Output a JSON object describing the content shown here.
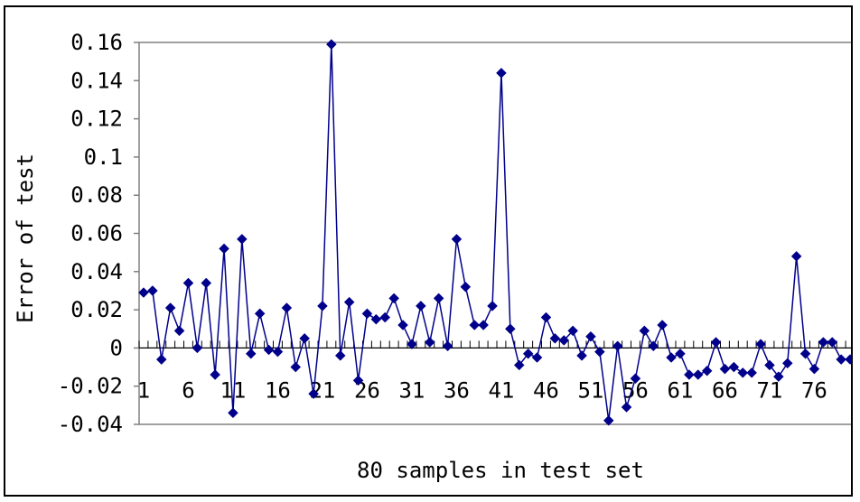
{
  "chart_data": {
    "type": "line",
    "title": "",
    "xlabel": "80 samples in test set",
    "ylabel": "Error of test",
    "ylim": [
      -0.04,
      0.16
    ],
    "xlim": [
      1,
      80
    ],
    "yticks": [
      "0.16",
      "0.14",
      "0.12",
      "0.1",
      "0.08",
      "0.06",
      "0.04",
      "0.02",
      "0",
      "-0.02",
      "-0.04"
    ],
    "ytick_values": [
      0.16,
      0.14,
      0.12,
      0.1,
      0.08,
      0.06,
      0.04,
      0.02,
      0,
      -0.02,
      -0.04
    ],
    "xticks": [
      "1",
      "6",
      "11",
      "16",
      "21",
      "26",
      "31",
      "36",
      "41",
      "46",
      "51",
      "56",
      "61",
      "66",
      "71",
      "76"
    ],
    "xtick_values": [
      1,
      6,
      11,
      16,
      21,
      26,
      31,
      36,
      41,
      46,
      51,
      56,
      61,
      66,
      71,
      76
    ],
    "grid": false,
    "legend": "none",
    "color": "#00008B",
    "marker": "diamond",
    "series": [
      {
        "x": [
          1,
          2,
          3,
          4,
          5,
          6,
          7,
          8,
          9,
          10,
          11,
          12,
          13,
          14,
          15,
          16,
          17,
          18,
          19,
          20,
          21,
          22,
          23,
          24,
          25,
          26,
          27,
          28,
          29,
          30,
          31,
          32,
          33,
          34,
          35,
          36,
          37,
          38,
          39,
          40,
          41,
          42,
          43,
          44,
          45,
          46,
          47,
          48,
          49,
          50,
          51,
          52,
          53,
          54,
          55,
          56,
          57,
          58,
          59,
          60,
          61,
          62,
          63,
          64,
          65,
          66,
          67,
          68,
          69,
          70,
          71,
          72,
          73,
          74,
          75,
          76,
          77,
          78,
          79,
          80
        ],
        "values": [
          0.029,
          0.03,
          -0.006,
          0.021,
          0.009,
          0.034,
          0.0,
          0.034,
          -0.014,
          0.052,
          -0.034,
          0.057,
          -0.003,
          0.018,
          -0.001,
          -0.002,
          0.021,
          -0.01,
          0.005,
          -0.024,
          0.022,
          0.159,
          -0.004,
          0.024,
          -0.017,
          0.018,
          0.015,
          0.016,
          0.026,
          0.012,
          0.002,
          0.022,
          0.003,
          0.026,
          0.001,
          0.057,
          0.032,
          0.012,
          0.012,
          0.022,
          0.144,
          0.01,
          -0.009,
          -0.003,
          -0.005,
          0.016,
          0.005,
          0.004,
          0.009,
          -0.004,
          0.006,
          -0.002,
          -0.038,
          0.001,
          -0.031,
          -0.016,
          0.009,
          0.001,
          0.012,
          -0.005,
          -0.003,
          -0.014,
          -0.014,
          -0.012,
          0.003,
          -0.011,
          -0.01,
          -0.013,
          -0.013,
          0.002,
          -0.009,
          -0.015,
          -0.008,
          0.048,
          -0.003,
          -0.011,
          0.003,
          0.003,
          -0.006,
          -0.006
        ]
      }
    ]
  }
}
